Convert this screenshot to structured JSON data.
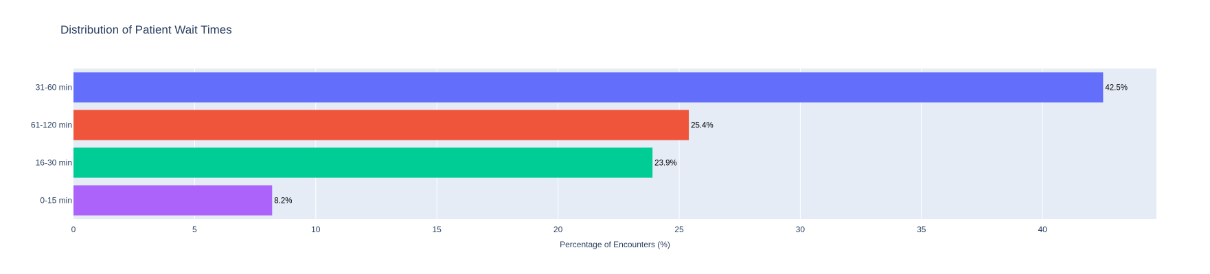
{
  "chart_data": {
    "type": "bar",
    "orientation": "horizontal",
    "title": "Distribution of Patient Wait Times",
    "xlabel": "Percentage of Encounters (%)",
    "ylabel": "",
    "categories": [
      "31-60 min",
      "61-120 min",
      "16-30 min",
      "0-15 min"
    ],
    "values": [
      42.5,
      25.4,
      23.9,
      8.2
    ],
    "value_labels": [
      "42.5%",
      "25.4%",
      "23.9%",
      "8.2%"
    ],
    "colors": [
      "#636efa",
      "#ef553b",
      "#00cc96",
      "#ab63fa"
    ],
    "xlim": [
      0,
      44.7
    ],
    "xticks": [
      0,
      5,
      10,
      15,
      20,
      25,
      30,
      35,
      40
    ],
    "grid": true,
    "legend": "none"
  },
  "style": {
    "plot_background": "#e5ecf6",
    "grid_color": "#ffffff",
    "text_color": "#2a3f5f"
  }
}
